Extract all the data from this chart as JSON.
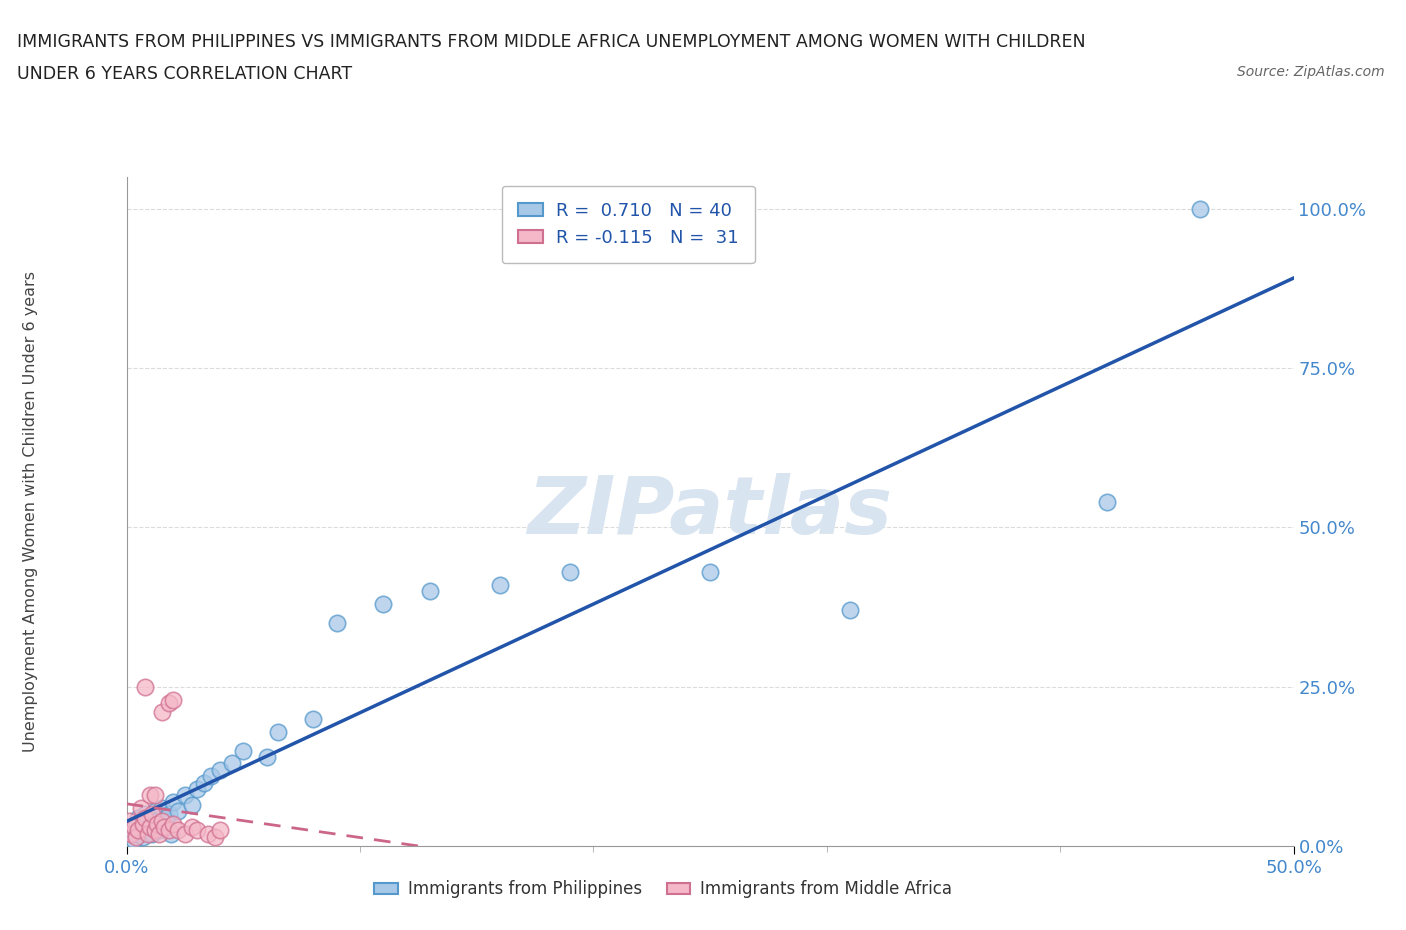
{
  "title_line1": "IMMIGRANTS FROM PHILIPPINES VS IMMIGRANTS FROM MIDDLE AFRICA UNEMPLOYMENT AMONG WOMEN WITH CHILDREN",
  "title_line2": "UNDER 6 YEARS CORRELATION CHART",
  "source_text": "Source: ZipAtlas.com",
  "xlabel_philippines": "Immigrants from Philippines",
  "xlabel_middle_africa": "Immigrants from Middle Africa",
  "ylabel": "Unemployment Among Women with Children Under 6 years",
  "xlim": [
    0.0,
    0.5
  ],
  "ylim": [
    0.0,
    1.05
  ],
  "ytick_labels": [
    "0.0%",
    "25.0%",
    "50.0%",
    "75.0%",
    "100.0%"
  ],
  "ytick_values": [
    0.0,
    0.25,
    0.5,
    0.75,
    1.0
  ],
  "xtick_labels": [
    "0.0%",
    "50.0%"
  ],
  "xtick_values": [
    0.0,
    0.5
  ],
  "blue_r": "0.710",
  "blue_n": 40,
  "pink_r": "-0.115",
  "pink_n": 31,
  "blue_fill_color": "#a8c8e8",
  "blue_edge_color": "#5599cc",
  "pink_fill_color": "#f4b8c8",
  "pink_edge_color": "#d07090",
  "blue_line_color": "#2255aa",
  "pink_line_color": "#cc6688",
  "tick_color": "#4488cc",
  "watermark_color": "#d8e4f0",
  "grid_color": "#cccccc",
  "blue_scatter_x": [
    0.002,
    0.003,
    0.004,
    0.005,
    0.006,
    0.007,
    0.008,
    0.009,
    0.01,
    0.011,
    0.012,
    0.013,
    0.014,
    0.015,
    0.016,
    0.017,
    0.018,
    0.019,
    0.02,
    0.022,
    0.025,
    0.028,
    0.03,
    0.033,
    0.036,
    0.04,
    0.045,
    0.05,
    0.06,
    0.065,
    0.08,
    0.09,
    0.11,
    0.13,
    0.16,
    0.19,
    0.25,
    0.31,
    0.42,
    0.46
  ],
  "blue_scatter_y": [
    0.03,
    0.01,
    0.02,
    0.045,
    0.025,
    0.015,
    0.05,
    0.03,
    0.035,
    0.02,
    0.055,
    0.04,
    0.025,
    0.06,
    0.03,
    0.045,
    0.05,
    0.02,
    0.07,
    0.055,
    0.08,
    0.065,
    0.09,
    0.1,
    0.11,
    0.12,
    0.13,
    0.15,
    0.14,
    0.18,
    0.2,
    0.35,
    0.38,
    0.4,
    0.41,
    0.43,
    0.43,
    0.37,
    0.54,
    1.0
  ],
  "pink_scatter_x": [
    0.001,
    0.002,
    0.003,
    0.004,
    0.005,
    0.006,
    0.007,
    0.008,
    0.009,
    0.01,
    0.011,
    0.012,
    0.013,
    0.014,
    0.015,
    0.016,
    0.018,
    0.02,
    0.022,
    0.025,
    0.028,
    0.03,
    0.035,
    0.038,
    0.04,
    0.015,
    0.018,
    0.02,
    0.008,
    0.01,
    0.012
  ],
  "pink_scatter_y": [
    0.04,
    0.02,
    0.03,
    0.015,
    0.025,
    0.06,
    0.035,
    0.045,
    0.02,
    0.03,
    0.05,
    0.025,
    0.035,
    0.02,
    0.04,
    0.03,
    0.025,
    0.035,
    0.025,
    0.02,
    0.03,
    0.025,
    0.02,
    0.015,
    0.025,
    0.21,
    0.225,
    0.23,
    0.25,
    0.08,
    0.08
  ]
}
